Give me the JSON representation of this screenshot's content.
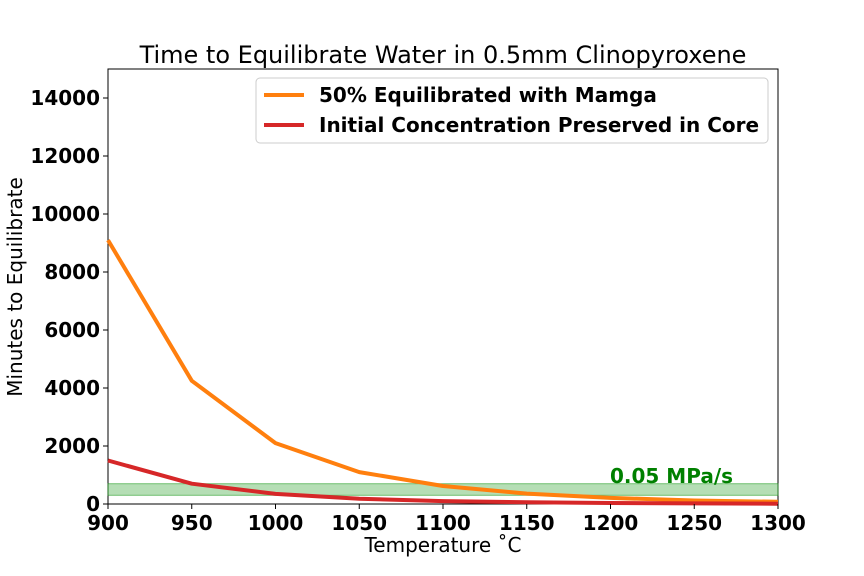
{
  "chart_data": {
    "type": "line",
    "title": "Time to Equilibrate Water in 0.5mm Clinopyroxene",
    "xlabel": "Temperature ˚C",
    "ylabel": "Minutes to Equilibrate",
    "xlim": [
      900,
      1300
    ],
    "ylim": [
      0,
      15000
    ],
    "xticks": [
      900,
      950,
      1000,
      1050,
      1100,
      1150,
      1200,
      1250,
      1300
    ],
    "yticks": [
      0,
      2000,
      4000,
      6000,
      8000,
      10000,
      12000,
      14000
    ],
    "x": [
      900,
      950,
      1000,
      1050,
      1100,
      1150,
      1200,
      1250,
      1300
    ],
    "series": [
      {
        "name": "50% Equilibrated with Mamga",
        "color": "#ff7f0e",
        "values": [
          9100,
          4250,
          2100,
          1100,
          620,
          360,
          210,
          120,
          75
        ]
      },
      {
        "name": "Initial Concentration Preserved in Core",
        "color": "#d62728",
        "values": [
          1500,
          700,
          350,
          180,
          100,
          60,
          35,
          20,
          12
        ]
      }
    ],
    "band": {
      "y_min": 300,
      "y_max": 700,
      "color": "#2ca02c",
      "label": "0.05 MPa/s",
      "label_color": "#008000"
    },
    "legend_position": "upper right",
    "grid": false
  }
}
